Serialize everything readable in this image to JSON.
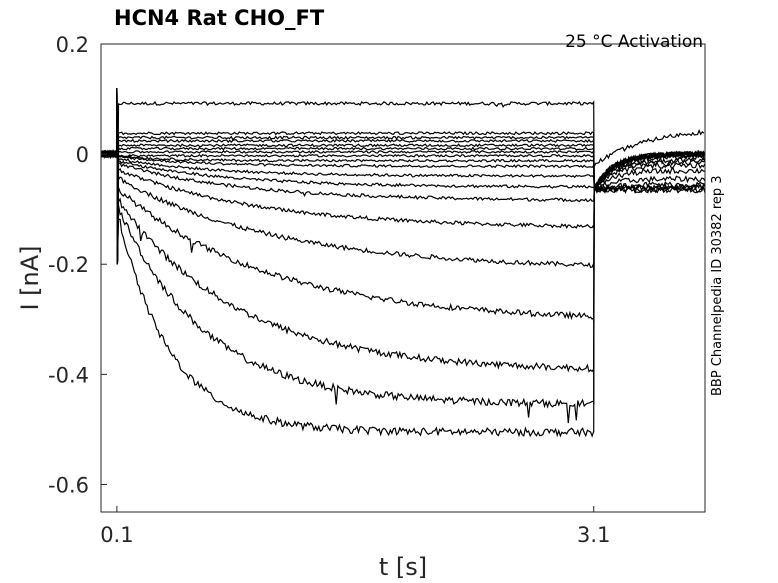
{
  "chart_data": {
    "type": "line",
    "title": "HCN4  Rat  CHO_FT",
    "annotation": "25 °C  Activation",
    "side_label": "BBP Channelpedia ID 30382 rep 3",
    "xlabel": "t [s]",
    "ylabel": "I [nA]",
    "xlim": [
      0.0,
      3.8
    ],
    "ylim": [
      -0.65,
      0.2
    ],
    "x_ticks": [
      "0.1",
      "3.1"
    ],
    "y_ticks": [
      "0.2",
      "0",
      "-0.2",
      "-0.4",
      "-0.6"
    ],
    "grid": false,
    "legend": "none",
    "pulse": {
      "start": 0.1,
      "end": 3.1
    },
    "series": [
      {
        "steady": 0.092,
        "tau": 0.05,
        "tail": 0.0
      },
      {
        "steady": 0.038,
        "tau": 0.05,
        "tail": 0.0
      },
      {
        "steady": 0.03,
        "tau": 0.05,
        "tail": 0.0
      },
      {
        "steady": 0.024,
        "tau": 0.05,
        "tail": 0.0
      },
      {
        "steady": 0.016,
        "tau": 0.05,
        "tail": 0.0
      },
      {
        "steady": 0.01,
        "tau": 0.05,
        "tail": 0.0
      },
      {
        "steady": 0.004,
        "tau": 0.05,
        "tail": 0.0
      },
      {
        "steady": -0.003,
        "tau": 0.05,
        "tail": 0.0
      },
      {
        "steady": -0.012,
        "tau": 0.3,
        "tail": -0.005
      },
      {
        "steady": -0.022,
        "tau": 0.5,
        "tail": -0.01
      },
      {
        "steady": -0.04,
        "tau": 0.6,
        "tail": -0.015
      },
      {
        "steady": -0.06,
        "tau": 0.7,
        "tail": -0.02
      },
      {
        "steady": -0.085,
        "tau": 0.8,
        "tail": -0.03
      },
      {
        "steady": -0.135,
        "tau": 0.9,
        "tail": -0.045
      },
      {
        "steady": -0.21,
        "tau": 1.0,
        "tail": -0.055
      },
      {
        "steady": -0.305,
        "tau": 0.95,
        "tail": -0.06
      },
      {
        "steady": -0.395,
        "tau": 0.75,
        "tail": -0.065
      },
      {
        "steady": -0.455,
        "tau": 0.55,
        "tail": -0.065
      },
      {
        "steady": -0.505,
        "tau": 0.33,
        "tail": -0.06
      }
    ],
    "outlier_trace": {
      "tail_end": 0.05
    }
  }
}
